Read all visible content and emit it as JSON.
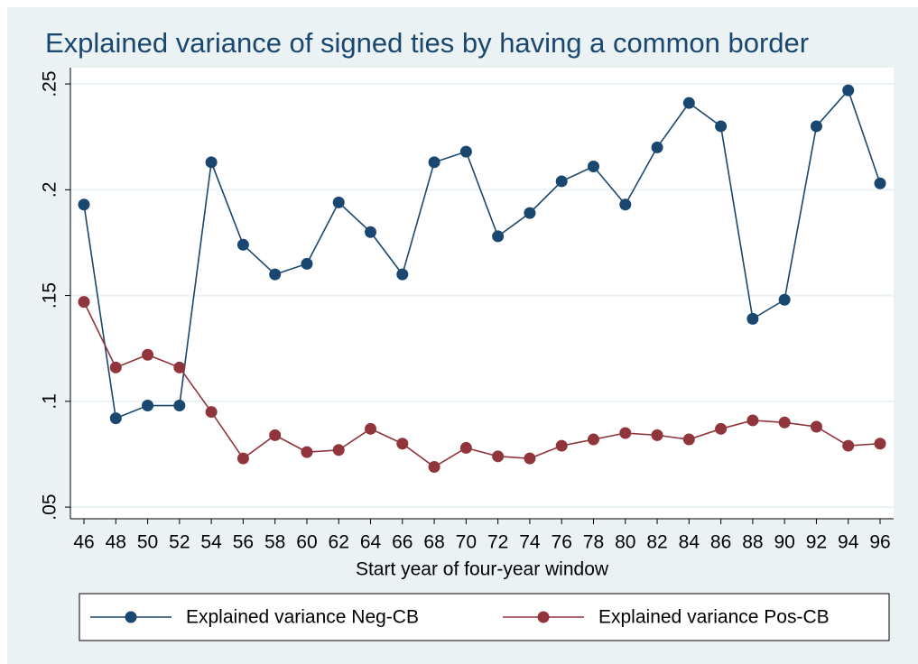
{
  "chart_data": {
    "type": "line",
    "title": "Explained variance of signed ties by having a common border",
    "xlabel": "Start year of four-year window",
    "x": [
      46,
      48,
      50,
      52,
      54,
      56,
      58,
      60,
      62,
      64,
      66,
      68,
      70,
      72,
      74,
      76,
      78,
      80,
      82,
      84,
      86,
      88,
      90,
      92,
      94,
      96
    ],
    "series": [
      {
        "name": "Explained variance Neg-CB",
        "color": "#1a476f",
        "values": [
          0.193,
          0.092,
          0.098,
          0.098,
          0.213,
          0.174,
          0.16,
          0.165,
          0.194,
          0.18,
          0.16,
          0.213,
          0.218,
          0.178,
          0.189,
          0.204,
          0.211,
          0.193,
          0.22,
          0.241,
          0.23,
          0.139,
          0.148,
          0.23,
          0.247,
          0.203
        ]
      },
      {
        "name": "Explained variance Pos-CB",
        "color": "#90353b",
        "values": [
          0.147,
          0.116,
          0.122,
          0.116,
          0.095,
          0.073,
          0.084,
          0.076,
          0.077,
          0.087,
          0.08,
          0.069,
          0.078,
          0.074,
          0.073,
          0.079,
          0.082,
          0.085,
          0.084,
          0.082,
          0.087,
          0.091,
          0.09,
          0.088,
          0.079,
          0.08
        ]
      }
    ],
    "xlim": [
      45.15,
      96.85
    ],
    "xticks": [
      46,
      48,
      50,
      52,
      54,
      56,
      58,
      60,
      62,
      64,
      66,
      68,
      70,
      72,
      74,
      76,
      78,
      80,
      82,
      84,
      86,
      88,
      90,
      92,
      94,
      96
    ],
    "ylim": [
      0.0445,
      0.2577
    ],
    "yticks": [
      {
        "value": 0.05,
        "label": ".05"
      },
      {
        "value": 0.1,
        "label": ".1"
      },
      {
        "value": 0.15,
        "label": ".15"
      },
      {
        "value": 0.2,
        "label": ".2"
      },
      {
        "value": 0.25,
        "label": ".25"
      }
    ],
    "grid": true,
    "legend": "bottom"
  }
}
